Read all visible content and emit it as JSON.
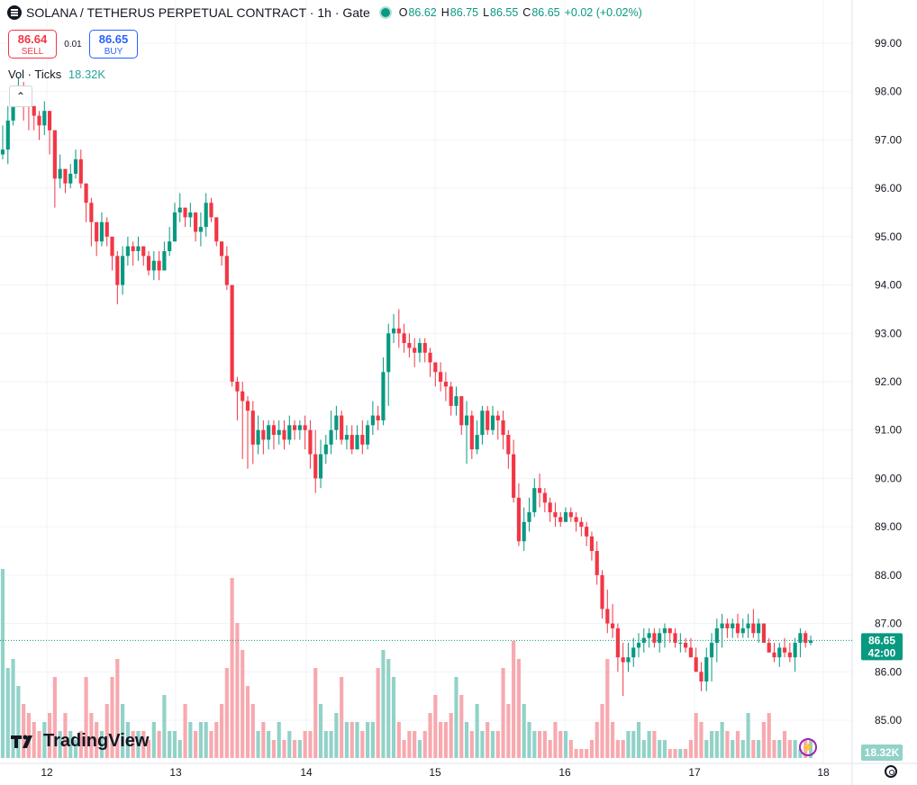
{
  "header": {
    "title": "SOLANA / TETHERUS PERPETUAL CONTRACT · 1h · Gate",
    "open_label": "O",
    "open": "86.62",
    "high_label": "H",
    "high": "86.75",
    "low_label": "L",
    "low": "86.55",
    "close_label": "C",
    "close": "86.65",
    "change": "+0.02 (+0.02%)"
  },
  "trade": {
    "sell_price": "86.64",
    "sell_label": "SELL",
    "spread": "0.01",
    "buy_price": "86.65",
    "buy_label": "BUY"
  },
  "volume": {
    "label": "Vol · Ticks",
    "value": "18.32K"
  },
  "price_axis": {
    "ticks": [
      "99.00",
      "98.00",
      "97.00",
      "96.00",
      "95.00",
      "94.00",
      "93.00",
      "92.00",
      "91.00",
      "90.00",
      "89.00",
      "88.00",
      "87.00",
      "86.00",
      "85.00"
    ],
    "last_price_label": "86.65",
    "countdown_label": "42:00",
    "volume_label": "18.32K"
  },
  "time_axis": {
    "ticks": [
      "12",
      "13",
      "14",
      "15",
      "16",
      "17",
      "18"
    ]
  },
  "branding": {
    "logo_text": "TradingView"
  },
  "colors": {
    "up": "#089981",
    "down": "#f23645",
    "up_volume": "#92d2c8",
    "down_volume": "#f7a9af",
    "last_price": "#089981"
  },
  "icons": {
    "symbol": "solana-icon",
    "status": "market-open-dot-icon",
    "settings": "gear-icon",
    "flash": "lightning-icon"
  },
  "chart_data": {
    "type": "candlestick",
    "interval": "1h",
    "x_labels": [
      "12",
      "13",
      "14",
      "15",
      "16",
      "17",
      "18"
    ],
    "ylim": [
      84.7,
      99.3
    ],
    "grid": true,
    "series": [
      {
        "name": "price",
        "close": [
          96.8,
          97.4,
          97.9,
          98.1,
          98.0,
          97.7,
          97.5,
          97.3,
          97.6,
          97.2,
          96.2,
          96.4,
          96.1,
          96.3,
          96.6,
          96.1,
          95.7,
          95.3,
          94.9,
          95.3,
          95.0,
          94.6,
          94.0,
          94.6,
          94.8,
          94.7,
          94.8,
          94.6,
          94.3,
          94.5,
          94.3,
          94.7,
          94.9,
          95.5,
          95.6,
          95.4,
          95.5,
          95.1,
          95.2,
          95.7,
          95.4,
          94.9,
          94.6,
          94.0,
          92.0,
          91.8,
          91.6,
          91.4,
          90.7,
          91.0,
          90.8,
          91.1,
          90.9,
          91.0,
          90.8,
          91.1,
          91.0,
          91.1,
          91.0,
          90.5,
          90.0,
          90.5,
          90.7,
          91.0,
          91.3,
          90.8,
          90.9,
          90.6,
          90.9,
          90.7,
          91.1,
          91.3,
          91.2,
          92.2,
          93.0,
          93.1,
          93.0,
          92.8,
          92.7,
          92.6,
          92.8,
          92.6,
          92.4,
          92.2,
          92.0,
          91.9,
          91.5,
          91.7,
          91.1,
          91.3,
          90.6,
          90.9,
          91.4,
          91.0,
          91.3,
          91.2,
          90.9,
          90.5,
          89.6,
          88.7,
          89.1,
          89.3,
          89.8,
          89.7,
          89.5,
          89.3,
          89.2,
          89.1,
          89.3,
          89.2,
          89.1,
          89.0,
          88.8,
          88.5,
          88.0,
          87.3,
          87.0,
          86.9,
          86.3,
          86.2,
          86.3,
          86.5,
          86.6,
          86.7,
          86.8,
          86.6,
          86.8,
          86.9,
          86.8,
          86.6,
          86.6,
          86.5,
          86.3,
          86.0,
          85.8,
          86.3,
          86.6,
          86.9,
          87.0,
          86.9,
          87.0,
          86.8,
          86.9,
          87.0,
          86.8,
          87.0,
          86.6,
          86.4,
          86.3,
          86.5,
          86.4,
          86.3,
          86.6,
          86.8,
          86.6,
          86.65
        ],
        "high": [
          97.3,
          97.7,
          98.1,
          98.3,
          98.2,
          97.9,
          97.7,
          97.6,
          97.8,
          97.6,
          96.6,
          96.7,
          96.3,
          96.5,
          96.8,
          96.8,
          96.1,
          95.8,
          95.3,
          95.5,
          95.4,
          95.0,
          94.7,
          94.8,
          95.0,
          94.9,
          95.0,
          94.8,
          94.7,
          94.7,
          94.7,
          94.9,
          95.2,
          95.7,
          95.9,
          95.6,
          95.7,
          95.4,
          95.5,
          95.9,
          95.8,
          95.4,
          94.9,
          94.8,
          94.0,
          92.1,
          92.0,
          91.7,
          91.6,
          91.3,
          91.2,
          91.2,
          91.2,
          91.2,
          91.2,
          91.3,
          91.2,
          91.2,
          91.3,
          91.2,
          91.0,
          90.8,
          90.9,
          91.4,
          91.5,
          91.4,
          91.1,
          91.1,
          91.1,
          91.2,
          91.2,
          91.6,
          91.5,
          92.5,
          93.2,
          93.4,
          93.5,
          93.2,
          93.0,
          92.9,
          92.9,
          92.9,
          92.7,
          92.4,
          92.4,
          92.2,
          92.0,
          91.9,
          91.7,
          91.6,
          91.4,
          91.2,
          91.5,
          91.5,
          91.5,
          91.4,
          91.4,
          91.0,
          90.8,
          89.9,
          89.4,
          89.6,
          90.0,
          90.1,
          89.8,
          89.6,
          89.5,
          89.3,
          89.4,
          89.4,
          89.3,
          89.2,
          89.1,
          88.9,
          88.7,
          88.1,
          87.7,
          87.4,
          87.0,
          86.6,
          86.6,
          86.7,
          86.8,
          86.9,
          86.9,
          86.9,
          86.9,
          87.0,
          86.9,
          86.9,
          86.8,
          86.7,
          86.7,
          86.5,
          86.2,
          86.5,
          86.8,
          87.1,
          87.2,
          87.1,
          87.1,
          87.2,
          87.1,
          87.2,
          87.3,
          87.1,
          87.0,
          86.7,
          86.6,
          86.6,
          86.7,
          86.6,
          86.7,
          86.9,
          86.85,
          86.75
        ],
        "low": [
          96.6,
          96.5,
          97.3,
          97.7,
          97.4,
          97.2,
          97.2,
          97.0,
          97.1,
          96.7,
          95.6,
          96.0,
          95.9,
          96.0,
          96.2,
          96.0,
          95.3,
          94.8,
          94.6,
          94.8,
          94.8,
          94.3,
          93.6,
          93.8,
          94.4,
          94.4,
          94.5,
          94.4,
          94.2,
          94.1,
          94.1,
          94.3,
          94.6,
          95.1,
          95.3,
          95.2,
          95.2,
          94.9,
          94.8,
          95.0,
          95.3,
          94.8,
          94.4,
          93.9,
          91.9,
          91.2,
          90.4,
          90.2,
          90.3,
          90.5,
          90.5,
          90.6,
          90.6,
          90.7,
          90.6,
          90.7,
          90.8,
          90.8,
          90.6,
          90.2,
          89.7,
          89.8,
          90.3,
          90.5,
          90.8,
          90.7,
          90.6,
          90.5,
          90.6,
          90.5,
          90.6,
          90.9,
          91.0,
          91.1,
          91.5,
          92.8,
          92.7,
          92.6,
          92.5,
          92.3,
          92.4,
          92.4,
          92.1,
          91.9,
          91.8,
          91.6,
          91.3,
          91.3,
          90.9,
          90.3,
          90.4,
          90.5,
          90.7,
          90.9,
          90.9,
          90.8,
          90.6,
          90.2,
          89.5,
          88.6,
          88.5,
          88.9,
          89.2,
          89.4,
          89.3,
          89.1,
          89.0,
          89.0,
          89.1,
          89.1,
          88.9,
          88.8,
          88.6,
          88.3,
          87.8,
          87.1,
          86.8,
          86.7,
          86.0,
          85.5,
          86.0,
          86.1,
          86.3,
          86.4,
          86.5,
          86.5,
          86.4,
          86.5,
          86.6,
          86.5,
          86.4,
          86.4,
          86.3,
          86.2,
          85.6,
          85.6,
          85.8,
          86.2,
          86.5,
          86.7,
          86.7,
          86.7,
          86.7,
          86.7,
          86.7,
          86.6,
          86.7,
          86.4,
          86.2,
          86.1,
          86.3,
          86.2,
          86.0,
          86.3,
          86.5,
          86.55
        ],
        "volume": [
          2.1,
          1.0,
          1.1,
          0.8,
          0.6,
          0.5,
          0.4,
          0.3,
          0.4,
          0.5,
          0.9,
          0.3,
          0.5,
          0.3,
          0.2,
          0.3,
          0.9,
          0.5,
          0.4,
          0.3,
          0.6,
          0.9,
          1.1,
          0.6,
          0.4,
          0.3,
          0.3,
          0.3,
          0.2,
          0.4,
          0.3,
          0.7,
          0.3,
          0.3,
          0.2,
          0.6,
          0.4,
          0.3,
          0.4,
          0.4,
          0.3,
          0.4,
          0.6,
          1.0,
          2.0,
          1.5,
          1.2,
          0.8,
          0.6,
          0.3,
          0.4,
          0.3,
          0.2,
          0.4,
          0.2,
          0.3,
          0.2,
          0.2,
          0.3,
          0.3,
          1.0,
          0.6,
          0.3,
          0.3,
          0.5,
          0.9,
          0.4,
          0.4,
          0.4,
          0.3,
          0.4,
          0.4,
          1.0,
          1.2,
          1.1,
          0.9,
          0.4,
          0.2,
          0.3,
          0.3,
          0.2,
          0.3,
          0.5,
          0.7,
          0.4,
          0.4,
          0.5,
          0.9,
          0.7,
          0.4,
          0.3,
          0.6,
          0.3,
          0.4,
          0.3,
          0.3,
          1.0,
          0.6,
          1.3,
          1.1,
          0.6,
          0.4,
          0.3,
          0.3,
          0.3,
          0.2,
          0.4,
          0.3,
          0.3,
          0.2,
          0.1,
          0.1,
          0.1,
          0.2,
          0.4,
          0.6,
          1.1,
          0.4,
          0.2,
          0.2,
          0.3,
          0.3,
          0.4,
          0.2,
          0.3,
          0.3,
          0.2,
          0.2,
          0.1,
          0.1,
          0.1,
          0.1,
          0.2,
          0.5,
          0.4,
          0.2,
          0.3,
          0.3,
          0.4,
          0.3,
          0.2,
          0.3,
          0.2,
          0.5,
          0.2,
          0.2,
          0.4,
          0.5,
          0.2,
          0.2,
          0.3,
          0.2,
          0.2,
          0.1,
          0.2,
          0.2
        ]
      }
    ]
  }
}
